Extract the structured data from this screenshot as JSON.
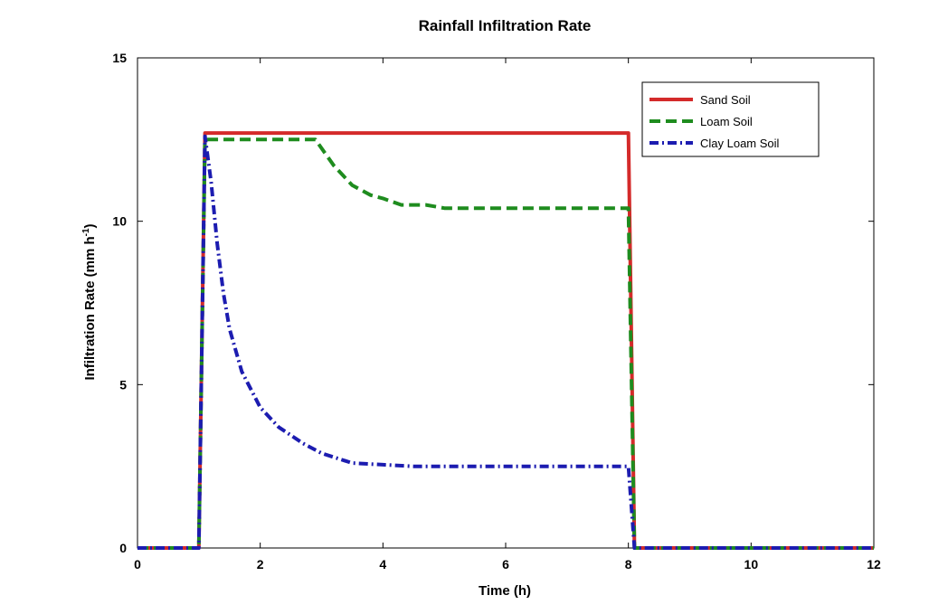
{
  "chart_data": {
    "type": "line",
    "title": "Rainfall Infiltration Rate",
    "xlabel": "Time (h)",
    "ylabel_main": "Infiltration Rate (mm h",
    "ylabel_sup": "-1",
    "ylabel_end": ")",
    "xlim": [
      0,
      12
    ],
    "ylim": [
      0,
      15
    ],
    "xticks": [
      0,
      2,
      4,
      6,
      8,
      10,
      12
    ],
    "yticks": [
      0,
      5,
      10,
      15
    ],
    "grid": false,
    "legend_position": "top-right",
    "series": [
      {
        "name": "Sand Soil",
        "color": "#d42a2a",
        "dash": "solid",
        "x": [
          0,
          1.0,
          1.1,
          8.0,
          8.1,
          12
        ],
        "y": [
          0,
          0,
          12.7,
          12.7,
          0,
          0
        ]
      },
      {
        "name": "Loam Soil",
        "color": "#1e8c1e",
        "dash": "dashed",
        "x": [
          0,
          1.0,
          1.1,
          2.9,
          3.2,
          3.5,
          3.8,
          4.0,
          4.3,
          4.7,
          5.0,
          5.5,
          6.0,
          6.5,
          7.0,
          7.5,
          8.0,
          8.1,
          12
        ],
        "y": [
          0,
          0,
          12.5,
          12.5,
          11.7,
          11.1,
          10.8,
          10.7,
          10.5,
          10.5,
          10.4,
          10.4,
          10.4,
          10.4,
          10.4,
          10.4,
          10.4,
          0,
          0
        ]
      },
      {
        "name": "Clay Loam Soil",
        "color": "#1c1cb0",
        "dash": "dashdot",
        "x": [
          0,
          1.0,
          1.1,
          1.2,
          1.3,
          1.4,
          1.5,
          1.7,
          2.0,
          2.3,
          2.7,
          3.0,
          3.5,
          4.0,
          4.5,
          5.0,
          6.0,
          7.0,
          8.0,
          8.1,
          12
        ],
        "y": [
          0,
          0,
          12.6,
          11.2,
          9.3,
          7.8,
          6.7,
          5.4,
          4.3,
          3.7,
          3.2,
          2.9,
          2.6,
          2.55,
          2.5,
          2.5,
          2.5,
          2.5,
          2.5,
          0,
          0
        ]
      }
    ]
  }
}
